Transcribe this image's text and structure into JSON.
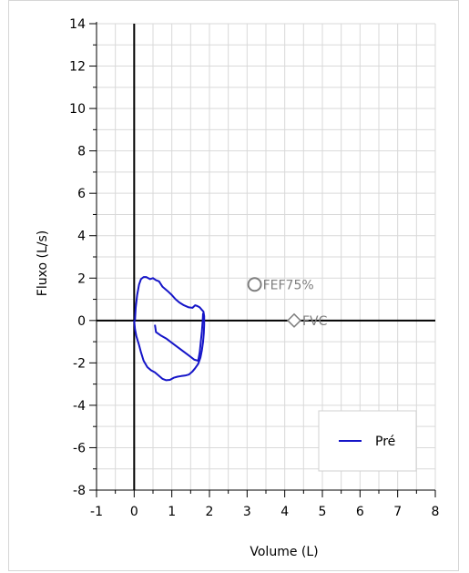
{
  "chart_data": {
    "type": "line",
    "xlabel": "Volume (L)",
    "ylabel": "Fluxo (L/s)",
    "xlim": [
      -1,
      8
    ],
    "ylim": [
      -8,
      14
    ],
    "x_ticks": [
      -1,
      0,
      1,
      2,
      3,
      4,
      5,
      6,
      7,
      8
    ],
    "y_ticks": [
      -8,
      -6,
      -4,
      -2,
      0,
      2,
      4,
      6,
      8,
      10,
      12,
      14
    ],
    "grid": true,
    "legend_position": "bottom-right",
    "colors": {
      "series": "#1515c8",
      "markers": "#7f7f7f",
      "grid": "#d9d9d9",
      "axis": "#000000"
    },
    "series": [
      {
        "name": "Pré",
        "points": [
          [
            0.02,
            0.0
          ],
          [
            0.04,
            0.6
          ],
          [
            0.08,
            1.2
          ],
          [
            0.13,
            1.7
          ],
          [
            0.18,
            1.95
          ],
          [
            0.25,
            2.05
          ],
          [
            0.32,
            2.05
          ],
          [
            0.42,
            1.95
          ],
          [
            0.5,
            2.0
          ],
          [
            0.58,
            1.9
          ],
          [
            0.66,
            1.85
          ],
          [
            0.75,
            1.6
          ],
          [
            0.88,
            1.4
          ],
          [
            1.0,
            1.2
          ],
          [
            1.1,
            1.0
          ],
          [
            1.2,
            0.85
          ],
          [
            1.32,
            0.72
          ],
          [
            1.45,
            0.62
          ],
          [
            1.55,
            0.6
          ],
          [
            1.62,
            0.72
          ],
          [
            1.68,
            0.68
          ],
          [
            1.74,
            0.62
          ],
          [
            1.8,
            0.5
          ],
          [
            1.84,
            0.42
          ],
          [
            1.86,
            0.2
          ],
          [
            1.86,
            -0.2
          ],
          [
            1.85,
            -0.6
          ],
          [
            1.83,
            -1.0
          ],
          [
            1.8,
            -1.4
          ],
          [
            1.76,
            -1.75
          ],
          [
            1.7,
            -2.05
          ],
          [
            1.62,
            -2.25
          ],
          [
            1.55,
            -2.4
          ],
          [
            1.45,
            -2.55
          ],
          [
            1.35,
            -2.6
          ],
          [
            1.25,
            -2.62
          ],
          [
            1.15,
            -2.65
          ],
          [
            1.05,
            -2.7
          ],
          [
            0.95,
            -2.8
          ],
          [
            0.85,
            -2.82
          ],
          [
            0.75,
            -2.75
          ],
          [
            0.65,
            -2.6
          ],
          [
            0.55,
            -2.45
          ],
          [
            0.45,
            -2.35
          ],
          [
            0.35,
            -2.2
          ],
          [
            0.25,
            -1.9
          ],
          [
            0.18,
            -1.5
          ],
          [
            0.12,
            -1.1
          ],
          [
            0.06,
            -0.75
          ],
          [
            0.02,
            -0.4
          ],
          [
            0.0,
            0.0
          ]
        ]
      },
      {
        "name": "Pré",
        "points": [
          [
            0.55,
            -0.2
          ],
          [
            0.58,
            -0.55
          ],
          [
            0.7,
            -0.7
          ],
          [
            0.85,
            -0.85
          ],
          [
            1.0,
            -1.05
          ],
          [
            1.15,
            -1.25
          ],
          [
            1.3,
            -1.45
          ],
          [
            1.45,
            -1.65
          ],
          [
            1.6,
            -1.85
          ],
          [
            1.7,
            -1.9
          ],
          [
            1.74,
            -1.5
          ],
          [
            1.77,
            -1.0
          ],
          [
            1.8,
            -0.5
          ],
          [
            1.82,
            0.0
          ],
          [
            1.83,
            0.35
          ]
        ]
      }
    ],
    "markers": [
      {
        "label": "FEF75%",
        "shape": "circle",
        "x": 3.2,
        "y": 1.7
      },
      {
        "label": "FVC",
        "shape": "diamond",
        "x": 4.25,
        "y": 0.0
      }
    ],
    "legend": [
      {
        "label": "Pré"
      }
    ]
  }
}
